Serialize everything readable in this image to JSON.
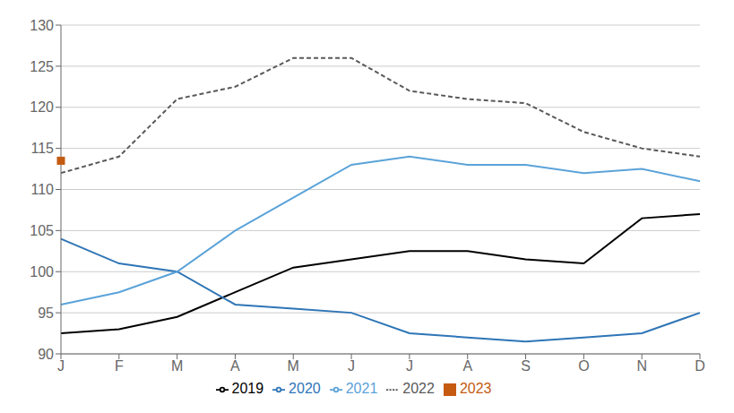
{
  "chart_data": {
    "type": "line",
    "categories": [
      "J",
      "F",
      "M",
      "A",
      "M",
      "J",
      "J",
      "A",
      "S",
      "O",
      "N",
      "D"
    ],
    "series": [
      {
        "name": "2019",
        "color": "#000000",
        "line_style": "solid",
        "values": [
          92.5,
          93.0,
          94.5,
          97.5,
          100.5,
          101.5,
          102.5,
          102.5,
          101.5,
          101.0,
          106.5,
          107.0
        ]
      },
      {
        "name": "2020",
        "color": "#2e75b6",
        "line_style": "solid",
        "values": [
          104.0,
          101.0,
          100.0,
          96.0,
          95.5,
          95.0,
          92.5,
          92.0,
          91.5,
          92.0,
          92.5,
          95.0
        ]
      },
      {
        "name": "2021",
        "color": "#5ba3d9",
        "line_style": "solid",
        "values": [
          96.0,
          97.5,
          100.0,
          105.0,
          109.0,
          113.0,
          114.0,
          113.0,
          113.0,
          112.0,
          112.5,
          111.0
        ]
      },
      {
        "name": "2022",
        "color": "#595959",
        "line_style": "dashed",
        "values": [
          112.0,
          114.0,
          121.0,
          122.5,
          126.0,
          126.0,
          122.0,
          121.0,
          120.5,
          117.0,
          115.0,
          114.0
        ]
      },
      {
        "name": "2023",
        "color": "#c55a11",
        "marker": "square",
        "values": [
          113.5,
          null,
          null,
          null,
          null,
          null,
          null,
          null,
          null,
          null,
          null,
          null
        ]
      }
    ],
    "ylim": [
      90,
      130
    ],
    "yticks": [
      90,
      95,
      100,
      105,
      110,
      115,
      120,
      125,
      130
    ],
    "grid": true,
    "legend": "bottom"
  }
}
